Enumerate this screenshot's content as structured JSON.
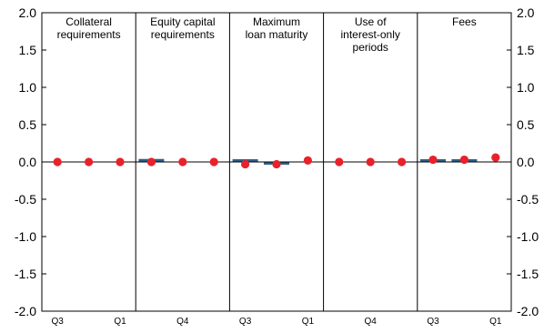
{
  "chart_data": {
    "type": "bar",
    "ylim": [
      -2.0,
      2.0
    ],
    "y_ticks": [
      "2.0",
      "1.5",
      "1.0",
      "0.5",
      "0.0",
      "-0.5",
      "-1.0",
      "-1.5",
      "-2.0"
    ],
    "y_tick_values": [
      2.0,
      1.5,
      1.0,
      0.5,
      0.0,
      -0.5,
      -1.0,
      -1.5,
      -2.0
    ],
    "grid": false,
    "colors": {
      "bar": "#2e5f8a",
      "dot": "#e8212a",
      "axis": "#000000"
    },
    "panels": [
      {
        "title": [
          "Collateral",
          "requirements"
        ],
        "bars": [
          0,
          0,
          0
        ],
        "dots": [
          0.0,
          0.0,
          0.0
        ],
        "ticks": [
          "Q3",
          "",
          "Q1"
        ]
      },
      {
        "title": [
          "Equity capital",
          "requirements"
        ],
        "bars": [
          0.04,
          0,
          0
        ],
        "dots": [
          0.0,
          0.0,
          0.0
        ],
        "ticks": [
          "",
          "Q4",
          ""
        ]
      },
      {
        "title": [
          "Maximum",
          "loan maturity"
        ],
        "bars": [
          0.01,
          -0.02,
          0
        ],
        "dots": [
          -0.03,
          -0.03,
          0.02
        ],
        "ticks": [
          "Q3",
          "",
          "Q1"
        ]
      },
      {
        "title": [
          "Use of",
          "interest-only",
          "periods"
        ],
        "bars": [
          0,
          0,
          0
        ],
        "dots": [
          0.0,
          0.0,
          0.0
        ],
        "ticks": [
          "",
          "Q4",
          ""
        ]
      },
      {
        "title": [
          "Fees"
        ],
        "bars": [
          0.02,
          0.02,
          0
        ],
        "dots": [
          0.03,
          0.03,
          0.06
        ],
        "ticks": [
          "Q3",
          "",
          "Q1"
        ]
      }
    ]
  }
}
